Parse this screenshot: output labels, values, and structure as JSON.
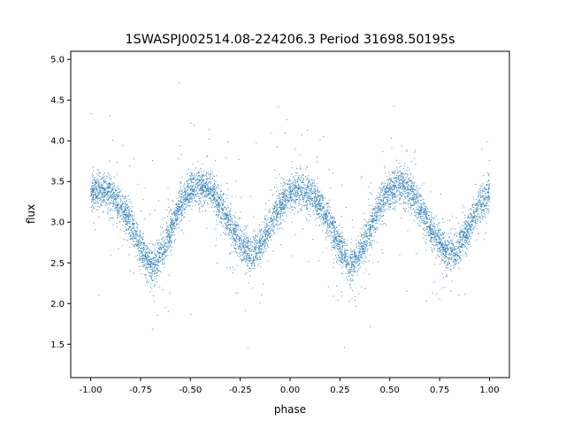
{
  "chart_data": {
    "type": "scatter",
    "title": "1SWASPJ002514.08-224206.3 Period 31698.50195s",
    "xlabel": "phase",
    "ylabel": "flux",
    "xlim": [
      -1.1,
      1.1
    ],
    "ylim": [
      1.09,
      5.1
    ],
    "xticks": [
      "-1.00",
      "-0.75",
      "-0.50",
      "-0.25",
      "0.00",
      "0.25",
      "0.50",
      "0.75",
      "1.00"
    ],
    "yticks": [
      "1.5",
      "2.0",
      "2.5",
      "3.0",
      "3.5",
      "4.0",
      "4.5",
      "5.0"
    ],
    "grid": false,
    "color": "#1f77b4",
    "note_series": "approximate binned mean of the scattered points",
    "series": [
      {
        "x": [
          -1.0,
          -0.95,
          -0.9,
          -0.85,
          -0.8,
          -0.75,
          -0.7,
          -0.65,
          -0.6,
          -0.55,
          -0.5,
          -0.45,
          -0.4,
          -0.35,
          -0.3,
          -0.25,
          -0.2,
          -0.15,
          -0.1,
          -0.05,
          0.0,
          0.05,
          0.1,
          0.15,
          0.2,
          0.25,
          0.3,
          0.35,
          0.4,
          0.45,
          0.5,
          0.55,
          0.6,
          0.65,
          0.7,
          0.75,
          0.8,
          0.85,
          0.9,
          0.95,
          1.0
        ],
        "y": [
          3.35,
          3.4,
          3.35,
          3.2,
          3.0,
          2.7,
          2.45,
          2.6,
          2.9,
          3.2,
          3.4,
          3.45,
          3.4,
          3.2,
          2.95,
          2.75,
          2.6,
          2.7,
          2.95,
          3.2,
          3.35,
          3.4,
          3.35,
          3.2,
          3.0,
          2.7,
          2.45,
          2.6,
          2.9,
          3.2,
          3.4,
          3.45,
          3.4,
          3.2,
          2.95,
          2.75,
          2.6,
          2.7,
          2.95,
          3.2,
          3.35
        ]
      }
    ]
  }
}
